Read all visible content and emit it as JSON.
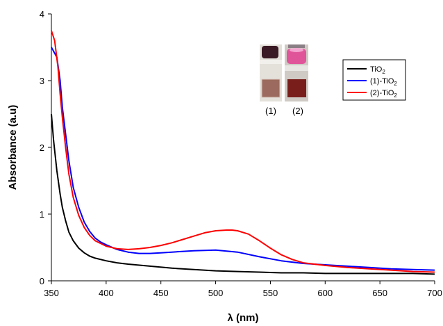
{
  "chart_data": {
    "type": "line",
    "xlabel": "λ (nm)",
    "ylabel": "Absorbance (a.u)",
    "xlim": [
      350,
      700
    ],
    "ylim": [
      0,
      4
    ],
    "xticks": [
      350,
      400,
      450,
      500,
      550,
      600,
      650,
      700
    ],
    "yticks": [
      0,
      1,
      2,
      3,
      4
    ],
    "grid": false,
    "legend_position": "top-right",
    "series": [
      {
        "name": "TiO2",
        "color": "#000000",
        "x": [
          350,
          352,
          355,
          358,
          360,
          363,
          366,
          370,
          375,
          380,
          385,
          390,
          400,
          410,
          420,
          440,
          460,
          480,
          500,
          520,
          540,
          560,
          580,
          600,
          620,
          640,
          660,
          680,
          700
        ],
        "y": [
          2.5,
          2.1,
          1.65,
          1.3,
          1.1,
          0.9,
          0.73,
          0.6,
          0.49,
          0.42,
          0.37,
          0.34,
          0.3,
          0.27,
          0.25,
          0.22,
          0.19,
          0.17,
          0.15,
          0.14,
          0.13,
          0.12,
          0.12,
          0.11,
          0.11,
          0.11,
          0.11,
          0.11,
          0.1
        ]
      },
      {
        "name": "(1)-TiO2",
        "color": "#0000ff",
        "x": [
          350,
          355,
          358,
          360,
          363,
          366,
          370,
          375,
          380,
          385,
          390,
          395,
          400,
          410,
          420,
          430,
          440,
          450,
          460,
          480,
          500,
          520,
          540,
          560,
          580,
          600,
          620,
          640,
          660,
          680,
          700
        ],
        "y": [
          3.5,
          3.35,
          3.0,
          2.6,
          2.2,
          1.8,
          1.4,
          1.1,
          0.88,
          0.74,
          0.64,
          0.58,
          0.54,
          0.47,
          0.43,
          0.41,
          0.41,
          0.42,
          0.43,
          0.45,
          0.46,
          0.43,
          0.36,
          0.3,
          0.26,
          0.24,
          0.22,
          0.2,
          0.18,
          0.17,
          0.16
        ]
      },
      {
        "name": "(2)-TiO2",
        "color": "#ff0000",
        "x": [
          350,
          353,
          356,
          358,
          360,
          363,
          366,
          370,
          375,
          380,
          385,
          390,
          400,
          410,
          420,
          430,
          440,
          450,
          460,
          470,
          480,
          490,
          500,
          510,
          515,
          520,
          530,
          540,
          550,
          560,
          570,
          580,
          600,
          620,
          640,
          660,
          680,
          700
        ],
        "y": [
          3.75,
          3.6,
          3.2,
          2.8,
          2.45,
          2.0,
          1.6,
          1.25,
          0.98,
          0.8,
          0.68,
          0.6,
          0.52,
          0.48,
          0.47,
          0.48,
          0.5,
          0.53,
          0.57,
          0.62,
          0.67,
          0.72,
          0.75,
          0.76,
          0.76,
          0.75,
          0.7,
          0.6,
          0.49,
          0.39,
          0.32,
          0.27,
          0.23,
          0.2,
          0.18,
          0.16,
          0.14,
          0.13
        ]
      }
    ],
    "legend": [
      {
        "base": "TiO",
        "sub": "2",
        "color": "#000000"
      },
      {
        "base": "(1)-TiO",
        "sub": "2",
        "color": "#0000ff"
      },
      {
        "base": "(2)-TiO",
        "sub": "2",
        "color": "#ff0000"
      }
    ],
    "inset": {
      "labels": [
        "(1)",
        "(2)"
      ],
      "vial_colors": [
        "#3a1a24",
        "#e0559a"
      ],
      "film_colors": [
        "#9c6a5e",
        "#7a1e1c"
      ]
    }
  }
}
